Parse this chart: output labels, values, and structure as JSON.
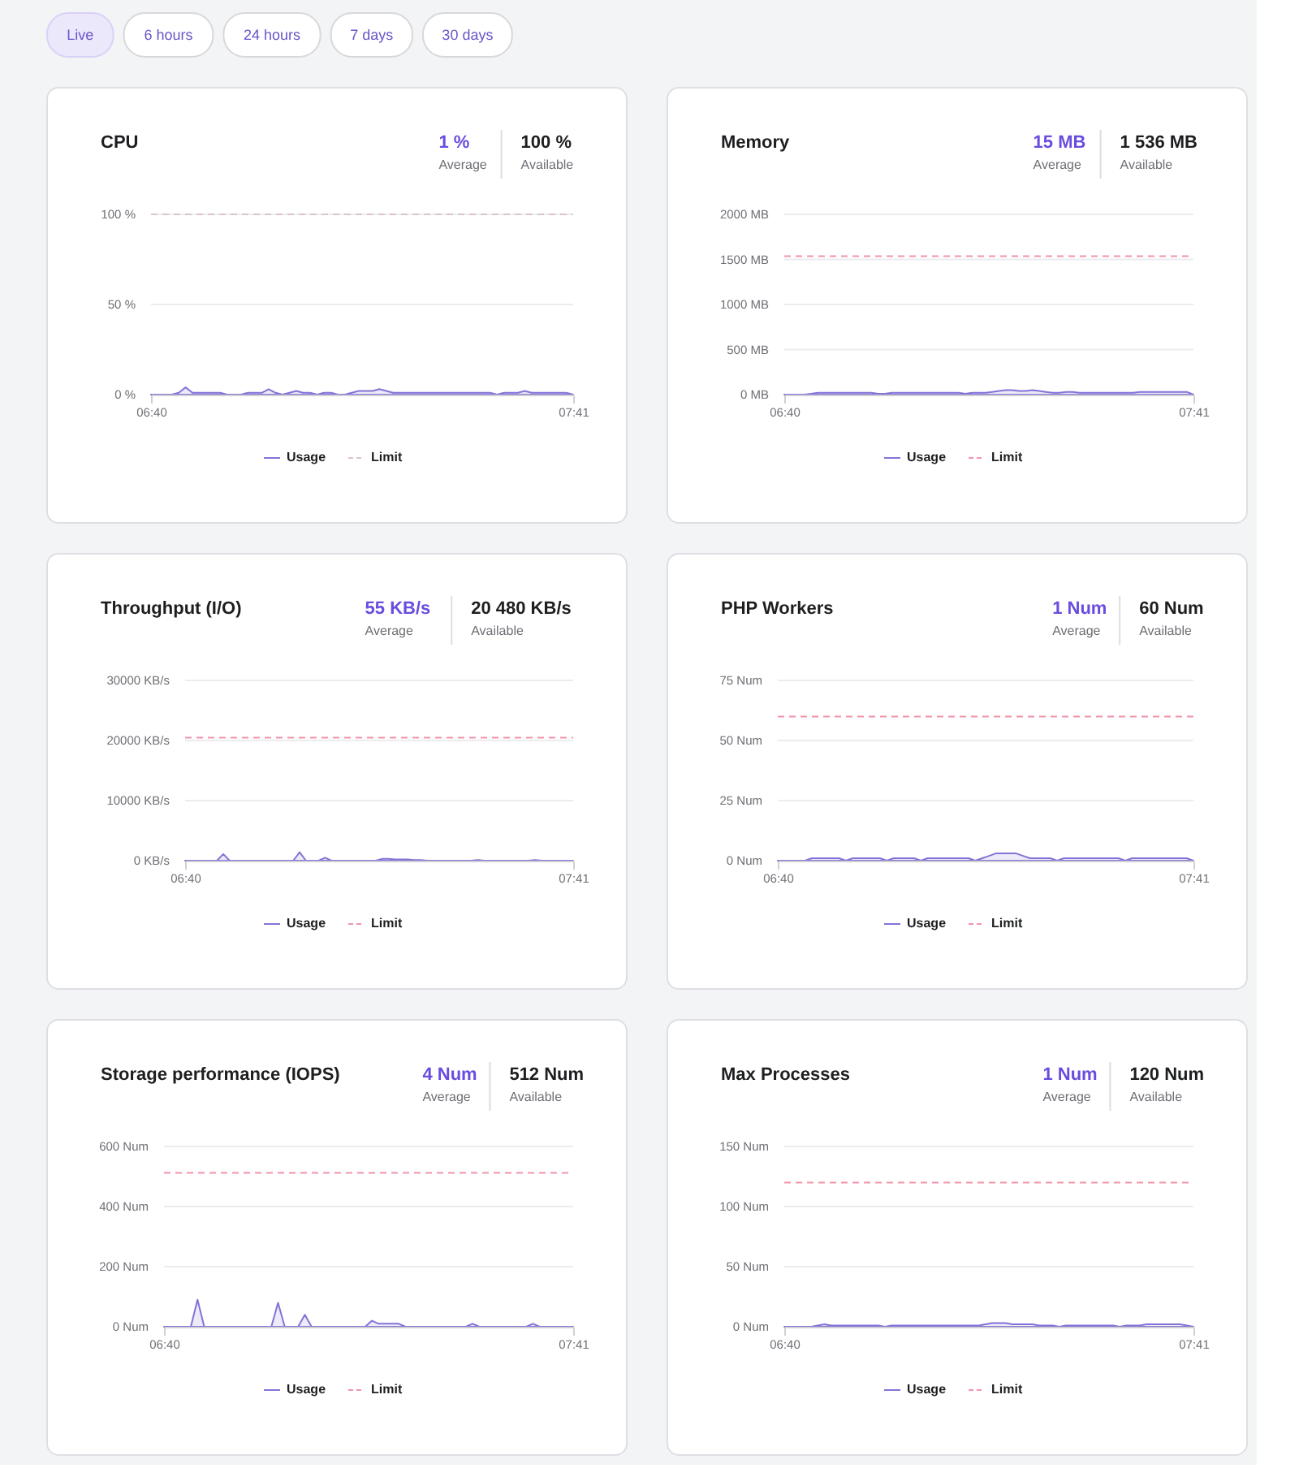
{
  "chart_data": [
    {
      "type": "other",
      "annotations": [
        "Live",
        "6 hours",
        "24 hours",
        "7 days",
        "30 days"
      ]
    },
    {
      "type": "area",
      "title": "CPU",
      "annotations": [
        "1 %",
        "Average",
        "100 %",
        "Available"
      ],
      "categories": [
        "06:40",
        null,
        null,
        null,
        null,
        null,
        null,
        null,
        null,
        null,
        null,
        null,
        null,
        null,
        null,
        null,
        null,
        null,
        null,
        null,
        null,
        null,
        null,
        null,
        null,
        null,
        null,
        null,
        null,
        null,
        null,
        null,
        null,
        null,
        null,
        null,
        null,
        null,
        null,
        null,
        null,
        null,
        null,
        null,
        null,
        null,
        null,
        null,
        null,
        null,
        null,
        null,
        null,
        null,
        null,
        null,
        null,
        null,
        null,
        null,
        null,
        "07:41"
      ],
      "ylim": [
        0,
        100
      ],
      "yticks": [
        {
          "value": 0,
          "label": "0 %"
        },
        {
          "value": 50,
          "label": "50 %"
        },
        {
          "value": 100,
          "label": "100 %"
        }
      ],
      "grid": "y",
      "legend": "bottom",
      "series": [
        {
          "name": "Usage",
          "color": "#8273d8",
          "values": [
            0,
            0,
            0,
            0,
            1,
            4,
            1,
            1,
            1,
            1,
            1,
            0,
            0,
            0,
            1,
            1,
            1,
            3,
            1,
            0,
            1,
            2,
            1,
            1,
            0,
            1,
            1,
            0,
            0,
            1,
            2,
            2,
            2,
            3,
            2,
            1,
            1,
            1,
            1,
            1,
            1,
            1,
            1,
            1,
            1,
            1,
            1,
            1,
            1,
            1,
            0,
            1,
            1,
            1,
            2,
            1,
            1,
            1,
            1,
            1,
            1,
            0
          ]
        }
      ],
      "ref_lines": [
        {
          "axis": "y",
          "value": 100,
          "label": "Limit",
          "color": "#dcc3c9",
          "line_style": "dashed"
        }
      ]
    },
    {
      "type": "area",
      "title": "Memory",
      "annotations": [
        "15 MB",
        "Average",
        "1 536 MB",
        "Available"
      ],
      "categories": [
        "06:40",
        null,
        null,
        null,
        null,
        null,
        null,
        null,
        null,
        null,
        null,
        null,
        null,
        null,
        null,
        null,
        null,
        null,
        null,
        null,
        null,
        null,
        null,
        null,
        null,
        null,
        null,
        null,
        null,
        null,
        null,
        null,
        null,
        null,
        null,
        null,
        null,
        null,
        null,
        null,
        null,
        null,
        null,
        null,
        null,
        null,
        null,
        null,
        null,
        null,
        null,
        null,
        null,
        null,
        null,
        null,
        null,
        null,
        null,
        null,
        null,
        "07:41"
      ],
      "ylim": [
        0,
        2000
      ],
      "yticks": [
        {
          "value": 0,
          "label": "0 MB"
        },
        {
          "value": 500,
          "label": "500 MB"
        },
        {
          "value": 1000,
          "label": "1000 MB"
        },
        {
          "value": 1500,
          "label": "1500 MB"
        },
        {
          "value": 2000,
          "label": "2000 MB"
        }
      ],
      "grid": "y",
      "legend": "bottom",
      "series": [
        {
          "name": "Usage",
          "color": "#8273d8",
          "values": [
            0,
            0,
            0,
            0,
            10,
            20,
            20,
            20,
            20,
            20,
            20,
            20,
            20,
            20,
            10,
            10,
            20,
            20,
            20,
            20,
            20,
            20,
            20,
            20,
            20,
            20,
            20,
            10,
            20,
            20,
            20,
            30,
            40,
            50,
            50,
            40,
            40,
            50,
            40,
            30,
            20,
            20,
            30,
            30,
            20,
            20,
            20,
            20,
            20,
            20,
            20,
            20,
            20,
            30,
            30,
            30,
            30,
            30,
            30,
            30,
            30,
            0
          ]
        }
      ],
      "ref_lines": [
        {
          "axis": "y",
          "value": 1536,
          "label": "Limit",
          "color": "#f293aa",
          "line_style": "dashed"
        }
      ]
    },
    {
      "type": "area",
      "title": "Throughput (I/O)",
      "annotations": [
        "55 KB/s",
        "Average",
        "20 480 KB/s",
        "Available"
      ],
      "categories": [
        "06:40",
        null,
        null,
        null,
        null,
        null,
        null,
        null,
        null,
        null,
        null,
        null,
        null,
        null,
        null,
        null,
        null,
        null,
        null,
        null,
        null,
        null,
        null,
        null,
        null,
        null,
        null,
        null,
        null,
        null,
        null,
        null,
        null,
        null,
        null,
        null,
        null,
        null,
        null,
        null,
        null,
        null,
        null,
        null,
        null,
        null,
        null,
        null,
        null,
        null,
        null,
        null,
        null,
        null,
        null,
        null,
        null,
        null,
        null,
        null,
        null,
        "07:41"
      ],
      "ylim": [
        0,
        30000
      ],
      "yticks": [
        {
          "value": 0,
          "label": "0 KB/s"
        },
        {
          "value": 10000,
          "label": "10000 KB/s"
        },
        {
          "value": 20000,
          "label": "20000 KB/s"
        },
        {
          "value": 30000,
          "label": "30000 KB/s"
        }
      ],
      "grid": "y",
      "legend": "bottom",
      "series": [
        {
          "name": "Usage",
          "color": "#8273d8",
          "values": [
            0,
            0,
            0,
            0,
            0,
            0,
            1100,
            0,
            0,
            0,
            0,
            0,
            0,
            0,
            0,
            0,
            0,
            0,
            1400,
            0,
            0,
            0,
            500,
            0,
            0,
            0,
            0,
            0,
            0,
            0,
            0,
            300,
            300,
            200,
            200,
            200,
            100,
            100,
            0,
            0,
            0,
            0,
            0,
            0,
            0,
            0,
            100,
            0,
            0,
            0,
            0,
            0,
            0,
            0,
            0,
            100,
            0,
            0,
            0,
            0,
            0,
            0
          ]
        }
      ],
      "ref_lines": [
        {
          "axis": "y",
          "value": 20480,
          "label": "Limit",
          "color": "#f293aa",
          "line_style": "dashed"
        }
      ]
    },
    {
      "type": "area",
      "title": "PHP Workers",
      "annotations": [
        "1 Num",
        "Average",
        "60 Num",
        "Available"
      ],
      "categories": [
        "06:40",
        null,
        null,
        null,
        null,
        null,
        null,
        null,
        null,
        null,
        null,
        null,
        null,
        null,
        null,
        null,
        null,
        null,
        null,
        null,
        null,
        null,
        null,
        null,
        null,
        null,
        null,
        null,
        null,
        null,
        null,
        null,
        null,
        null,
        null,
        null,
        null,
        null,
        null,
        null,
        null,
        null,
        null,
        null,
        null,
        null,
        null,
        null,
        null,
        null,
        null,
        null,
        null,
        null,
        null,
        null,
        null,
        null,
        null,
        null,
        null,
        "07:41"
      ],
      "ylim": [
        0,
        75
      ],
      "yticks": [
        {
          "value": 0,
          "label": "0 Num"
        },
        {
          "value": 25,
          "label": "25 Num"
        },
        {
          "value": 50,
          "label": "50 Num"
        },
        {
          "value": 75,
          "label": "75 Num"
        }
      ],
      "grid": "y",
      "legend": "bottom",
      "series": [
        {
          "name": "Usage",
          "color": "#8273d8",
          "values": [
            0,
            0,
            0,
            0,
            0,
            1,
            1,
            1,
            1,
            1,
            0,
            1,
            1,
            1,
            1,
            1,
            0,
            1,
            1,
            1,
            1,
            0,
            1,
            1,
            1,
            1,
            1,
            1,
            1,
            0,
            1,
            2,
            3,
            3,
            3,
            3,
            2,
            1,
            1,
            1,
            1,
            0,
            1,
            1,
            1,
            1,
            1,
            1,
            1,
            1,
            1,
            0,
            1,
            1,
            1,
            1,
            1,
            1,
            1,
            1,
            1,
            0
          ]
        }
      ],
      "ref_lines": [
        {
          "axis": "y",
          "value": 60,
          "label": "Limit",
          "color": "#f293aa",
          "line_style": "dashed"
        }
      ]
    },
    {
      "type": "area",
      "title": "Storage performance (IOPS)",
      "annotations": [
        "4 Num",
        "Average",
        "512 Num",
        "Available"
      ],
      "categories": [
        "06:40",
        null,
        null,
        null,
        null,
        null,
        null,
        null,
        null,
        null,
        null,
        null,
        null,
        null,
        null,
        null,
        null,
        null,
        null,
        null,
        null,
        null,
        null,
        null,
        null,
        null,
        null,
        null,
        null,
        null,
        null,
        null,
        null,
        null,
        null,
        null,
        null,
        null,
        null,
        null,
        null,
        null,
        null,
        null,
        null,
        null,
        null,
        null,
        null,
        null,
        null,
        null,
        null,
        null,
        null,
        null,
        null,
        null,
        null,
        null,
        null,
        "07:41"
      ],
      "ylim": [
        0,
        600
      ],
      "yticks": [
        {
          "value": 0,
          "label": "0 Num"
        },
        {
          "value": 200,
          "label": "200 Num"
        },
        {
          "value": 400,
          "label": "400 Num"
        },
        {
          "value": 600,
          "label": "600 Num"
        }
      ],
      "grid": "y",
      "legend": "bottom",
      "series": [
        {
          "name": "Usage",
          "color": "#8273d8",
          "values": [
            0,
            0,
            0,
            0,
            0,
            90,
            0,
            0,
            0,
            0,
            0,
            0,
            0,
            0,
            0,
            0,
            0,
            80,
            0,
            0,
            0,
            40,
            0,
            0,
            0,
            0,
            0,
            0,
            0,
            0,
            0,
            20,
            10,
            10,
            10,
            10,
            0,
            0,
            0,
            0,
            0,
            0,
            0,
            0,
            0,
            0,
            10,
            0,
            0,
            0,
            0,
            0,
            0,
            0,
            0,
            10,
            0,
            0,
            0,
            0,
            0,
            0
          ]
        }
      ],
      "ref_lines": [
        {
          "axis": "y",
          "value": 512,
          "label": "Limit",
          "color": "#f293aa",
          "line_style": "dashed"
        }
      ]
    },
    {
      "type": "area",
      "title": "Max Processes",
      "annotations": [
        "1 Num",
        "Average",
        "120 Num",
        "Available"
      ],
      "categories": [
        "06:40",
        null,
        null,
        null,
        null,
        null,
        null,
        null,
        null,
        null,
        null,
        null,
        null,
        null,
        null,
        null,
        null,
        null,
        null,
        null,
        null,
        null,
        null,
        null,
        null,
        null,
        null,
        null,
        null,
        null,
        null,
        null,
        null,
        null,
        null,
        null,
        null,
        null,
        null,
        null,
        null,
        null,
        null,
        null,
        null,
        null,
        null,
        null,
        null,
        null,
        null,
        null,
        null,
        null,
        null,
        null,
        null,
        null,
        null,
        null,
        null,
        "07:41"
      ],
      "ylim": [
        0,
        150
      ],
      "yticks": [
        {
          "value": 0,
          "label": "0 Num"
        },
        {
          "value": 50,
          "label": "50 Num"
        },
        {
          "value": 100,
          "label": "100 Num"
        },
        {
          "value": 150,
          "label": "150 Num"
        }
      ],
      "grid": "y",
      "legend": "bottom",
      "series": [
        {
          "name": "Usage",
          "color": "#8273d8",
          "values": [
            0,
            0,
            0,
            0,
            0,
            1,
            2,
            1,
            1,
            1,
            1,
            1,
            1,
            1,
            1,
            0,
            1,
            1,
            1,
            1,
            1,
            1,
            1,
            1,
            1,
            1,
            1,
            1,
            1,
            1,
            2,
            3,
            3,
            3,
            2,
            2,
            2,
            2,
            1,
            1,
            1,
            0,
            1,
            1,
            1,
            1,
            1,
            1,
            1,
            1,
            0,
            1,
            1,
            1,
            2,
            2,
            2,
            2,
            2,
            2,
            1,
            0
          ]
        }
      ],
      "ref_lines": [
        {
          "axis": "y",
          "value": 120,
          "label": "Limit",
          "color": "#f293aa",
          "line_style": "dashed"
        }
      ]
    }
  ]
}
